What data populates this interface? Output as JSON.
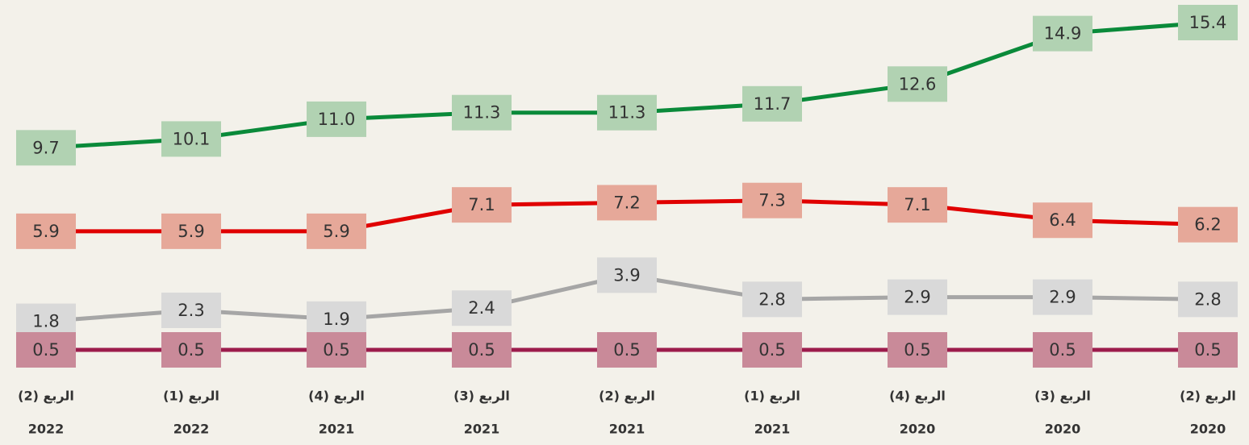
{
  "chart_data": {
    "type": "line",
    "categories": [
      [
        "الربع (2)",
        "2022"
      ],
      [
        "الربع (1)",
        "2022"
      ],
      [
        "الربع (4)",
        "2021"
      ],
      [
        "الربع (3)",
        "2021"
      ],
      [
        "الربع (2)",
        "2021"
      ],
      [
        "الربع (1)",
        "2021"
      ],
      [
        "الربع (4)",
        "2020"
      ],
      [
        "الربع (3)",
        "2020"
      ],
      [
        "الربع (2)",
        "2020"
      ]
    ],
    "series": [
      {
        "color": "#0a8a3a",
        "label_color": "#b1d2b2",
        "values": [
          9.7,
          10.1,
          11.0,
          11.3,
          11.3,
          11.7,
          12.6,
          14.9,
          15.4
        ],
        "value_labels": [
          "9.7",
          "10.1",
          "11.0",
          "11.3",
          "11.3",
          "11.7",
          "12.6",
          "14.9",
          "15.4"
        ]
      },
      {
        "color": "#e00000",
        "label_color": "#e6a899",
        "values": [
          5.9,
          5.9,
          5.9,
          7.1,
          7.2,
          7.3,
          7.1,
          6.4,
          6.2
        ]
      },
      {
        "color": "#a6a6a6",
        "label_color": "#d9d9d9",
        "values": [
          1.8,
          2.3,
          1.9,
          2.4,
          3.9,
          2.8,
          2.9,
          2.9,
          2.8
        ]
      },
      {
        "color": "#9c1c4c",
        "label_color": "#c98a99",
        "values": [
          0.5,
          0.5,
          0.5,
          0.5,
          0.5,
          0.5,
          0.5,
          0.5,
          0.5
        ]
      }
    ]
  }
}
